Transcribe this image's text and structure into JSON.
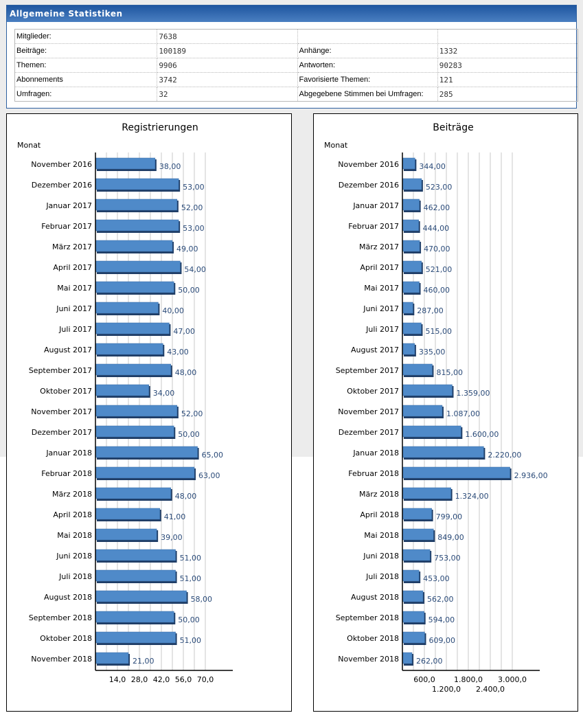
{
  "stats": {
    "title": "Allgemeine Statistiken",
    "rows": [
      [
        {
          "label": "Mitglieder:",
          "value": "7638"
        },
        {
          "label": "",
          "value": ""
        }
      ],
      [
        {
          "label": "Beiträge:",
          "value": "100189"
        },
        {
          "label": "Anhänge:",
          "value": "1332"
        }
      ],
      [
        {
          "label": "Themen:",
          "value": "9906"
        },
        {
          "label": "Antworten:",
          "value": "90283"
        }
      ],
      [
        {
          "label": "Abonnements",
          "value": "3742"
        },
        {
          "label": "Favorisierte Themen:",
          "value": "121"
        }
      ],
      [
        {
          "label": "Umfragen:",
          "value": "32"
        },
        {
          "label": "Abgegebene Stimmen bei Umfragen:",
          "value": "285"
        }
      ]
    ]
  },
  "colors": {
    "bar": "#4f8ac9",
    "bar_shadow": "#1f3d66",
    "value_label": "#2a4a78",
    "header": "#2c5fa0"
  },
  "chart_data": [
    {
      "type": "bar",
      "orientation": "horizontal",
      "title": "Registrierungen",
      "ylabel": "Monat",
      "xlabel": "",
      "categories": [
        "November 2016",
        "Dezember 2016",
        "Januar 2017",
        "Februar 2017",
        "März 2017",
        "April 2017",
        "Mai 2017",
        "Juni 2017",
        "Juli 2017",
        "August 2017",
        "September 2017",
        "Oktober 2017",
        "November 2017",
        "Dezember 2017",
        "Januar 2018",
        "Februar 2018",
        "März 2018",
        "April 2018",
        "Mai 2018",
        "Juni 2018",
        "Juli 2018",
        "August 2018",
        "September 2018",
        "Oktober 2018",
        "November 2018"
      ],
      "values": [
        38,
        53,
        52,
        53,
        49,
        54,
        50,
        40,
        47,
        43,
        48,
        34,
        52,
        50,
        65,
        63,
        48,
        41,
        39,
        51,
        51,
        58,
        50,
        51,
        21
      ],
      "value_labels": [
        "38,00",
        "53,00",
        "52,00",
        "53,00",
        "49,00",
        "54,00",
        "50,00",
        "40,00",
        "47,00",
        "43,00",
        "48,00",
        "34,00",
        "52,00",
        "50,00",
        "65,00",
        "63,00",
        "48,00",
        "41,00",
        "39,00",
        "51,00",
        "51,00",
        "58,00",
        "50,00",
        "51,00",
        "21,00"
      ],
      "xlim": [
        0,
        84
      ],
      "grid_step": 7,
      "grid_max": 70,
      "ticks": [
        14,
        28,
        42,
        56,
        70
      ],
      "tick_labels": [
        "14,0",
        "28,0",
        "42,0",
        "56,0",
        "70,0"
      ],
      "grid": true
    },
    {
      "type": "bar",
      "orientation": "horizontal",
      "title": "Beiträge",
      "ylabel": "Monat",
      "xlabel": "",
      "categories": [
        "November 2016",
        "Dezember 2016",
        "Januar 2017",
        "Februar 2017",
        "März 2017",
        "April 2017",
        "Mai 2017",
        "Juni 2017",
        "Juli 2017",
        "August 2017",
        "September 2017",
        "Oktober 2017",
        "November 2017",
        "Dezember 2017",
        "Januar 2018",
        "Februar 2018",
        "März 2018",
        "April 2018",
        "Mai 2018",
        "Juni 2018",
        "Juli 2018",
        "August 2018",
        "September 2018",
        "Oktober 2018",
        "November 2018"
      ],
      "values": [
        344,
        523,
        462,
        444,
        470,
        521,
        460,
        287,
        515,
        335,
        815,
        1359,
        1087,
        1600,
        2220,
        2936,
        1324,
        799,
        849,
        753,
        453,
        562,
        594,
        609,
        262
      ],
      "value_labels": [
        "344,00",
        "523,00",
        "462,00",
        "444,00",
        "470,00",
        "521,00",
        "460,00",
        "287,00",
        "515,00",
        "335,00",
        "815,00",
        "1.359,00",
        "1.087,00",
        "1.600,00",
        "2.220,00",
        "2.936,00",
        "1.324,00",
        "799,00",
        "849,00",
        "753,00",
        "453,00",
        "562,00",
        "594,00",
        "609,00",
        "262,00"
      ],
      "xlim": [
        0,
        3750
      ],
      "grid_step": 300,
      "grid_max": 3000,
      "ticks": [
        600,
        1200,
        1800,
        2400,
        3000
      ],
      "tick_labels": [
        "600,0",
        "1.200,0",
        "1.800,0",
        "2.400,0",
        "3.000,0"
      ],
      "grid": true
    }
  ]
}
